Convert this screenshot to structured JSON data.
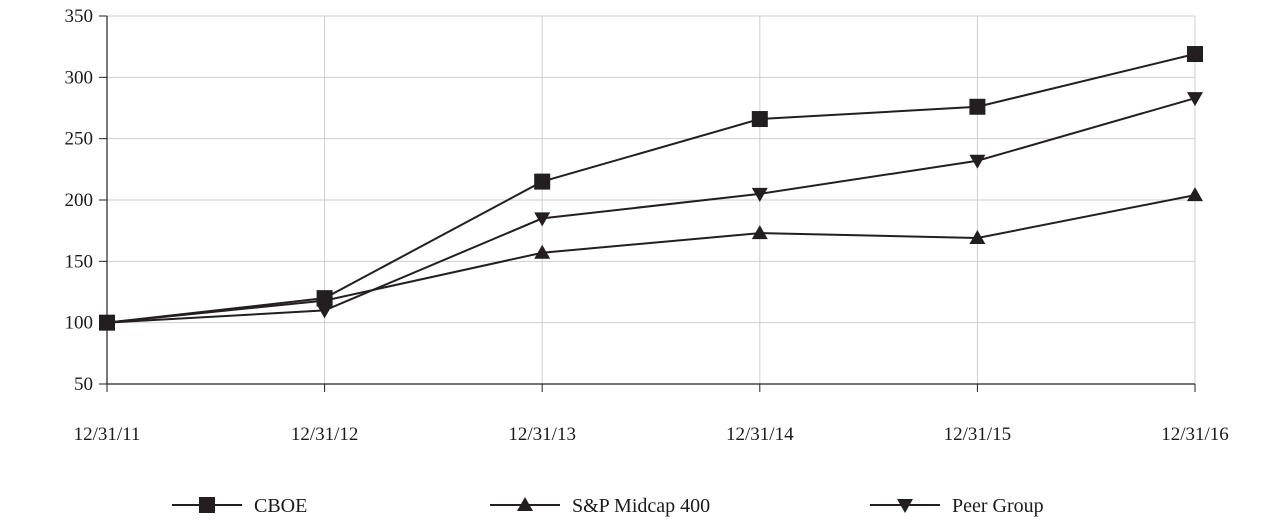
{
  "chart_data": {
    "type": "line",
    "title": "",
    "xlabel": "",
    "ylabel": "",
    "categories": [
      "12/31/11",
      "12/31/12",
      "12/31/13",
      "12/31/14",
      "12/31/15",
      "12/31/16"
    ],
    "ylim": [
      50,
      350
    ],
    "yticks": [
      50,
      100,
      150,
      200,
      250,
      300,
      350
    ],
    "grid": true,
    "legend_position": "bottom",
    "series": [
      {
        "name": "CBOE",
        "marker": "square",
        "values": [
          100,
          120,
          215,
          266,
          276,
          319
        ]
      },
      {
        "name": "S&P Midcap 400",
        "marker": "triangle-up",
        "values": [
          100,
          118,
          157,
          173,
          169,
          204
        ]
      },
      {
        "name": "Peer Group",
        "marker": "triangle-down",
        "values": [
          100,
          110,
          185,
          205,
          232,
          283
        ]
      }
    ],
    "colors": {
      "line": "#231f20",
      "grid": "#cfcfcf",
      "axis": "#231f20"
    }
  }
}
